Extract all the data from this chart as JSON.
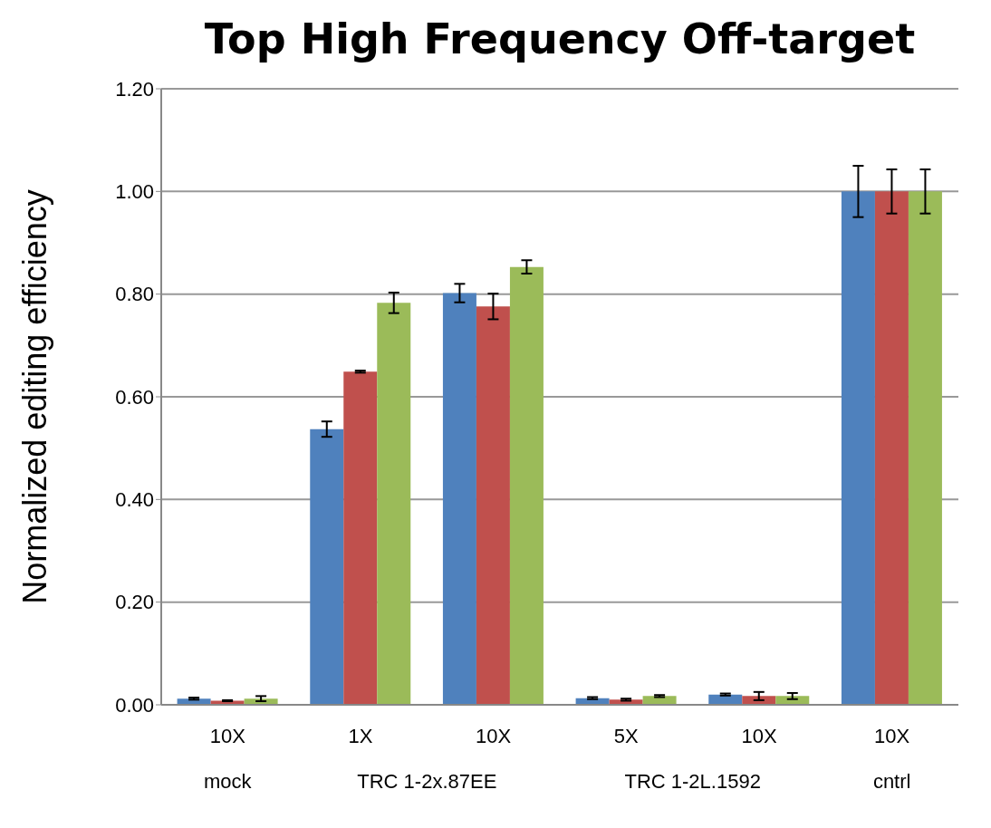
{
  "chart_data": {
    "type": "bar",
    "title": "Top High Frequency Off-target",
    "ylabel": "Normalized editing efficiency",
    "categories": [
      "10X",
      "1X",
      "10X",
      "5X",
      "10X",
      "10X"
    ],
    "annotations": [
      "mock",
      "TRC 1-2x.87EE",
      "TRC 1-2L.1592",
      "cntrl"
    ],
    "series": [
      {
        "color": "#4f81bd",
        "values": [
          0.012,
          0.537,
          0.802,
          0.013,
          0.02,
          1.0
        ],
        "errors": [
          0.002,
          0.015,
          0.018,
          0.002,
          0.002,
          0.05
        ]
      },
      {
        "color": "#c0504d",
        "values": [
          0.008,
          0.649,
          0.776,
          0.01,
          0.017,
          1.0
        ],
        "errors": [
          0.001,
          0.002,
          0.025,
          0.002,
          0.008,
          0.043
        ]
      },
      {
        "color": "#9bbb59",
        "values": [
          0.012,
          0.783,
          0.853,
          0.017,
          0.017,
          1.0
        ],
        "errors": [
          0.005,
          0.02,
          0.013,
          0.002,
          0.006,
          0.043
        ]
      }
    ],
    "ylim": [
      0,
      1.2
    ],
    "yticks": [
      {
        "value": 0,
        "label": "0.00"
      },
      {
        "value": 0.2,
        "label": "0.20"
      },
      {
        "value": 0.4,
        "label": "0.40"
      },
      {
        "value": 0.6,
        "label": "0.60"
      },
      {
        "value": 0.8,
        "label": "0.80"
      },
      {
        "value": 1.0,
        "label": "1.00"
      },
      {
        "value": 1.2,
        "label": "1.20"
      }
    ],
    "grid": "y",
    "legend": false
  }
}
